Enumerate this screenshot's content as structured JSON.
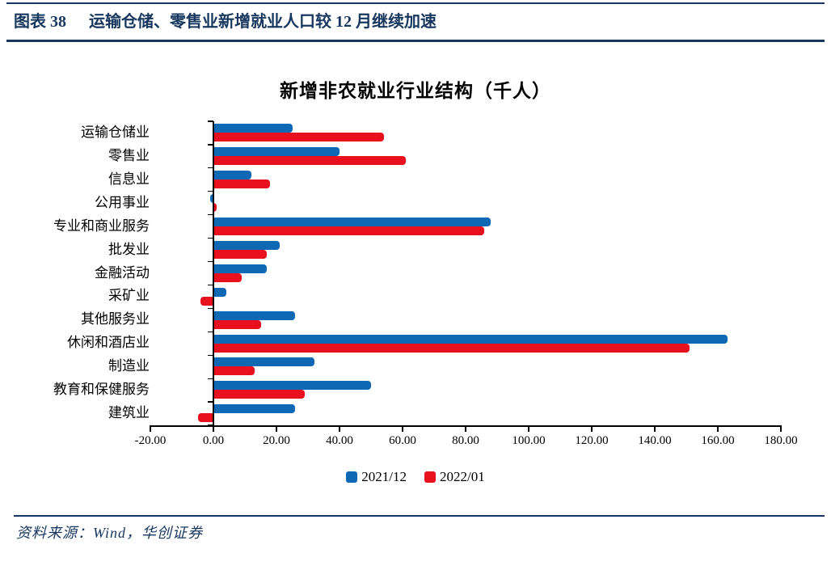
{
  "page": {
    "header": {
      "figure_label": "图表 38",
      "title": "运输仓储、零售业新增就业人口较 12 月继续加速"
    },
    "footer": {
      "source": "资料来源：Wind，华创证券"
    },
    "colors": {
      "navy": "#17375E",
      "series_blue": "#0F68B4",
      "series_red": "#E8101E",
      "axis_black": "#000000"
    }
  },
  "chart_data": {
    "type": "bar",
    "orientation": "horizontal",
    "title": "新增非农就业行业结构（千人）",
    "categories": [
      "运输仓储业",
      "零售业",
      "信息业",
      "公用事业",
      "专业和商业服务",
      "批发业",
      "金融活动",
      "采矿业",
      "其他服务业",
      "休闲和酒店业",
      "制造业",
      "教育和保健服务",
      "建筑业"
    ],
    "series": [
      {
        "name": "2021/12",
        "color": "#0F68B4",
        "values": [
          25,
          40,
          12,
          -1,
          88,
          21,
          17,
          4,
          26,
          163,
          32,
          50,
          26
        ]
      },
      {
        "name": "2022/01",
        "color": "#E8101E",
        "values": [
          54,
          61,
          18,
          1,
          86,
          17,
          9,
          -4,
          15,
          151,
          13,
          29,
          -5
        ]
      }
    ],
    "xlim": [
      -20,
      180
    ],
    "x_tick_step": 20,
    "x_tick_labels": [
      "-20.00",
      "0.00",
      "20.00",
      "40.00",
      "60.00",
      "80.00",
      "100.00",
      "120.00",
      "140.00",
      "160.00",
      "180.00"
    ],
    "grid": false,
    "legend_position": "bottom",
    "value_axis_side": "bottom"
  }
}
